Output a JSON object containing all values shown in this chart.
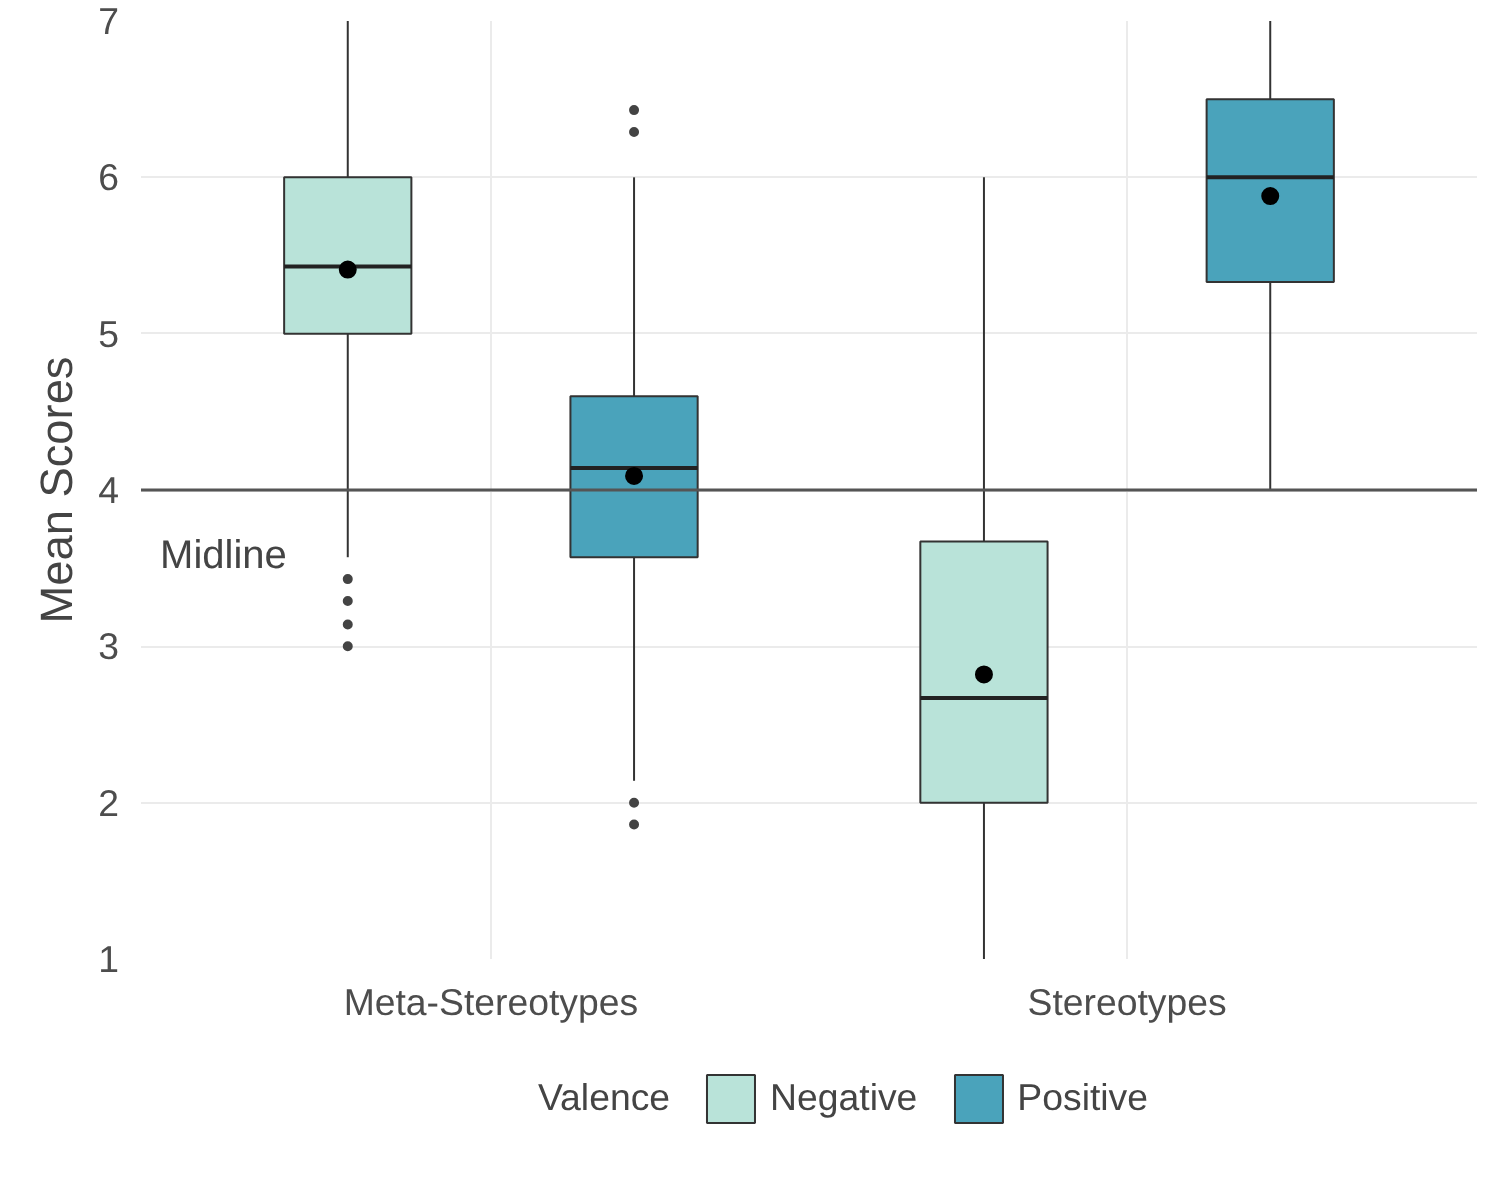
{
  "chart_data": {
    "type": "box",
    "ylabel": "Mean Scores",
    "legend_title": "Valence",
    "categories": [
      "Meta-Stereotypes",
      "Stereotypes"
    ],
    "series": [
      {
        "name": "Negative",
        "color": "#b9e3d9",
        "boxes": [
          {
            "low": 3.57,
            "q1": 5.0,
            "median": 5.43,
            "q3": 6.0,
            "high": 7.0,
            "mean": 5.41,
            "outliers": [
              3.43,
              3.29,
              3.14,
              3.0
            ]
          },
          {
            "low": 1.0,
            "q1": 2.0,
            "median": 2.67,
            "q3": 3.67,
            "high": 6.0,
            "mean": 2.82
          }
        ]
      },
      {
        "name": "Positive",
        "color": "#4aa3bb",
        "boxes": [
          {
            "low": 2.14,
            "q1": 3.57,
            "median": 4.14,
            "q3": 4.6,
            "high": 6.0,
            "mean": 4.09,
            "outliers": [
              6.43,
              6.29,
              2.0,
              1.86
            ]
          },
          {
            "low": 4.0,
            "q1": 5.33,
            "median": 6.0,
            "q3": 6.5,
            "high": 7.0,
            "mean": 5.88
          }
        ]
      }
    ],
    "ylim": [
      1,
      7
    ],
    "yticks": [
      1,
      2,
      3,
      4,
      5,
      6,
      7
    ],
    "grid": true,
    "legend": "bottom",
    "ref_lines": [
      {
        "axis": "y",
        "value": 4,
        "label": "Midline",
        "color": "#555555"
      }
    ]
  }
}
